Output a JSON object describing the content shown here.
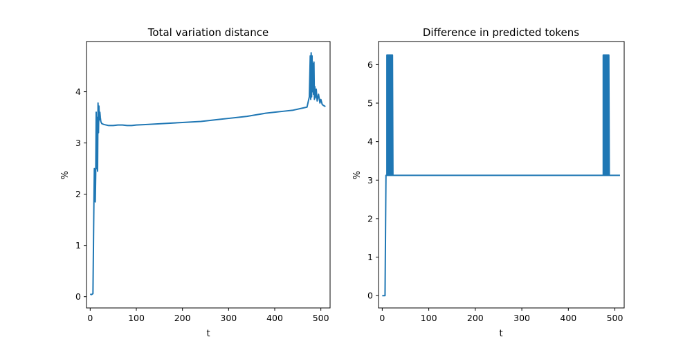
{
  "chart_data": [
    {
      "type": "line",
      "title": "Total variation distance",
      "xlabel": "t",
      "ylabel": "%",
      "xlim": [
        -8,
        520
      ],
      "ylim": [
        -0.22,
        4.98
      ],
      "xticks": [
        0,
        100,
        200,
        300,
        400,
        500
      ],
      "yticks": [
        0,
        1,
        2,
        3,
        4
      ],
      "xtick_labels": [
        "0",
        "100",
        "200",
        "300",
        "400",
        "500"
      ],
      "ytick_labels": [
        "0",
        "1",
        "2",
        "3",
        "4"
      ],
      "grid": false,
      "color": "#1f77b4",
      "series": [
        {
          "x": [
            0,
            3,
            6,
            8,
            9,
            10,
            11,
            12,
            13,
            14,
            15,
            16,
            17,
            18,
            19,
            20,
            21,
            22,
            23,
            24,
            25,
            27,
            30,
            35,
            40,
            50,
            60,
            70,
            80,
            90,
            100,
            120,
            140,
            160,
            180,
            200,
            220,
            240,
            260,
            280,
            300,
            320,
            340,
            360,
            380,
            400,
            420,
            440,
            460,
            470,
            475,
            477,
            478,
            479,
            480,
            481,
            482,
            483,
            484,
            485,
            486,
            487,
            488,
            490,
            492,
            495,
            498,
            500,
            503,
            506,
            510
          ],
          "y": [
            0.05,
            0.04,
            0.06,
            1.8,
            2.5,
            2.2,
            1.85,
            2.4,
            3.6,
            2.5,
            3.5,
            2.45,
            3.78,
            3.2,
            3.72,
            3.45,
            3.6,
            3.5,
            3.42,
            3.4,
            3.38,
            3.37,
            3.36,
            3.35,
            3.34,
            3.34,
            3.35,
            3.35,
            3.34,
            3.34,
            3.35,
            3.36,
            3.37,
            3.38,
            3.39,
            3.4,
            3.41,
            3.42,
            3.44,
            3.46,
            3.48,
            3.5,
            3.52,
            3.55,
            3.58,
            3.6,
            3.62,
            3.64,
            3.68,
            3.7,
            3.9,
            4.7,
            3.85,
            4.76,
            3.9,
            4.7,
            4.0,
            4.55,
            3.95,
            4.58,
            3.85,
            4.1,
            3.88,
            4.05,
            3.82,
            3.95,
            3.78,
            3.85,
            3.75,
            3.73,
            3.71
          ]
        }
      ]
    },
    {
      "type": "line",
      "title": "Difference in predicted tokens",
      "xlabel": "t",
      "ylabel": "%",
      "xlim": [
        -8,
        520
      ],
      "ylim": [
        -0.32,
        6.6
      ],
      "xticks": [
        0,
        100,
        200,
        300,
        400,
        500
      ],
      "yticks": [
        0,
        1,
        2,
        3,
        4,
        5,
        6
      ],
      "xtick_labels": [
        "0",
        "100",
        "200",
        "300",
        "400",
        "500"
      ],
      "ytick_labels": [
        "0",
        "1",
        "2",
        "3",
        "4",
        "5",
        "6"
      ],
      "grid": false,
      "color": "#1f77b4",
      "series": [
        {
          "x": [
            0,
            3,
            6,
            8,
            10,
            10,
            11,
            11,
            12,
            12,
            13,
            13,
            14,
            14,
            15,
            15,
            16,
            16,
            17,
            17,
            18,
            18,
            19,
            19,
            20,
            20,
            21,
            21,
            22,
            22,
            23,
            475,
            475,
            476,
            476,
            477,
            477,
            478,
            478,
            479,
            479,
            480,
            480,
            481,
            481,
            482,
            482,
            483,
            483,
            484,
            484,
            485,
            485,
            486,
            486,
            487,
            487,
            488,
            511
          ],
          "y": [
            0,
            0,
            0,
            3.125,
            3.125,
            6.25,
            6.25,
            3.125,
            3.125,
            6.25,
            6.25,
            3.125,
            3.125,
            6.25,
            6.25,
            3.125,
            3.125,
            6.25,
            6.25,
            3.125,
            3.125,
            6.25,
            6.25,
            3.125,
            3.125,
            6.25,
            6.25,
            3.125,
            3.125,
            6.25,
            3.125,
            3.125,
            6.25,
            6.25,
            3.125,
            3.125,
            6.25,
            6.25,
            3.125,
            3.125,
            6.25,
            6.25,
            3.125,
            3.125,
            6.25,
            6.25,
            3.125,
            3.125,
            6.25,
            6.25,
            3.125,
            3.125,
            6.25,
            6.25,
            3.125,
            3.125,
            6.25,
            3.125,
            3.125
          ]
        }
      ]
    }
  ]
}
